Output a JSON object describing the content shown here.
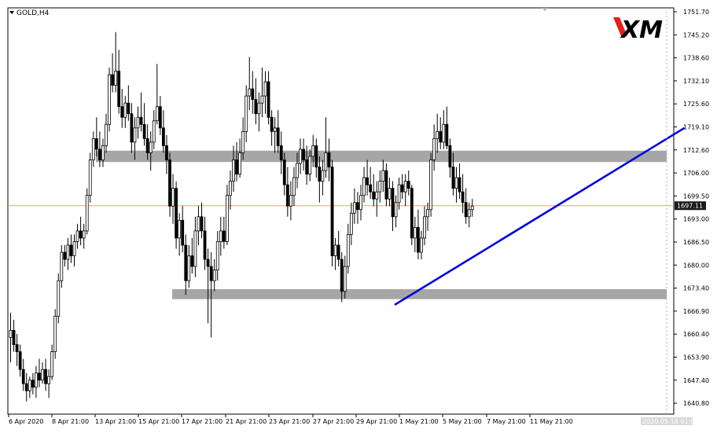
{
  "symbol_label": "GOLD,H4",
  "logo_text": "XM",
  "current_price_label": "1697.11",
  "price_ticks": [
    "1751.70",
    "1745.20",
    "1738.60",
    "1732.10",
    "1725.60",
    "1719.10",
    "1712.60",
    "1706.00",
    "1699.50",
    "1693.00",
    "1686.50",
    "1680.00",
    "1673.40",
    "1666.90",
    "1660.40",
    "1653.90",
    "1647.40",
    "1640.80"
  ],
  "date_ticks": [
    "6 Apr 2020",
    "8 Apr 21:00",
    "13 Apr 21:00",
    "15 Apr 21:00",
    "17 Apr 21:00",
    "21 Apr 21:00",
    "23 Apr 21:00",
    "27 Apr 21:00",
    "29 Apr 21:00",
    "1 May 21:00",
    "5 May 21:00",
    "7 May 21:00",
    "11 May 21:00"
  ],
  "last_date_label": "2020.05.18 01:00",
  "colors": {
    "candle": "#000000",
    "zone": "#a6a6a6",
    "trendline": "#0000e0",
    "price_line": "#f0a070",
    "price_label_bg": "#1a1a1a",
    "logo_red": "#e2231a"
  },
  "chart_data": {
    "type": "candlestick",
    "symbol": "GOLD",
    "timeframe": "H4",
    "ylim": [
      1638.5,
      1753.0
    ],
    "current_price": 1697.11,
    "zones": [
      {
        "from": 1709.4,
        "to": 1712.6
      },
      {
        "from": 1670.8,
        "to": 1673.6
      }
    ],
    "trendline": [
      {
        "bar": 121,
        "price": 1669.2
      },
      {
        "bar": 212,
        "price": 1719.0
      }
    ],
    "ohlc": [
      [
        1660,
        1667,
        1653,
        1662
      ],
      [
        1662,
        1665,
        1656,
        1658
      ],
      [
        1658,
        1661,
        1652,
        1656
      ],
      [
        1656,
        1658,
        1649,
        1651
      ],
      [
        1651,
        1654,
        1645,
        1647
      ],
      [
        1647,
        1650,
        1642,
        1645
      ],
      [
        1645,
        1649,
        1643,
        1648
      ],
      [
        1648,
        1650,
        1644,
        1646
      ],
      [
        1646,
        1652,
        1643,
        1650
      ],
      [
        1650,
        1654,
        1646,
        1648
      ],
      [
        1648,
        1653,
        1647,
        1651
      ],
      [
        1651,
        1654,
        1645,
        1647
      ],
      [
        1647,
        1651,
        1643,
        1649
      ],
      [
        1649,
        1658,
        1648,
        1656
      ],
      [
        1656,
        1668,
        1654,
        1666
      ],
      [
        1666,
        1678,
        1664,
        1676
      ],
      [
        1676,
        1686,
        1674,
        1684
      ],
      [
        1684,
        1686,
        1680,
        1682
      ],
      [
        1682,
        1688,
        1679,
        1686
      ],
      [
        1686,
        1689,
        1681,
        1683
      ],
      [
        1683,
        1689,
        1680,
        1687
      ],
      [
        1687,
        1692,
        1685,
        1690
      ],
      [
        1690,
        1694,
        1686,
        1688
      ],
      [
        1688,
        1692,
        1685,
        1690
      ],
      [
        1690,
        1702,
        1689,
        1700
      ],
      [
        1700,
        1712,
        1698,
        1710
      ],
      [
        1710,
        1718,
        1708,
        1716
      ],
      [
        1716,
        1722,
        1711,
        1713
      ],
      [
        1713,
        1718,
        1708,
        1710
      ],
      [
        1710,
        1716,
        1708,
        1714
      ],
      [
        1714,
        1723,
        1712,
        1720
      ],
      [
        1720,
        1736,
        1718,
        1734
      ],
      [
        1734,
        1740,
        1729,
        1731
      ],
      [
        1731,
        1746,
        1729,
        1735
      ],
      [
        1735,
        1741,
        1723,
        1725
      ],
      [
        1725,
        1730,
        1719,
        1722
      ],
      [
        1722,
        1728,
        1719,
        1726
      ],
      [
        1726,
        1731,
        1721,
        1723
      ],
      [
        1723,
        1726,
        1712,
        1715
      ],
      [
        1715,
        1722,
        1710,
        1719
      ],
      [
        1719,
        1725,
        1716,
        1722
      ],
      [
        1722,
        1729,
        1718,
        1720
      ],
      [
        1720,
        1726,
        1714,
        1716
      ],
      [
        1716,
        1720,
        1710,
        1712
      ],
      [
        1712,
        1718,
        1707,
        1715
      ],
      [
        1715,
        1724,
        1713,
        1721
      ],
      [
        1721,
        1737,
        1720,
        1725
      ],
      [
        1725,
        1728,
        1717,
        1719
      ],
      [
        1719,
        1724,
        1712,
        1714
      ],
      [
        1714,
        1717,
        1706,
        1710
      ],
      [
        1710,
        1712,
        1694,
        1697
      ],
      [
        1697,
        1706,
        1692,
        1702
      ],
      [
        1702,
        1704,
        1685,
        1688
      ],
      [
        1688,
        1695,
        1683,
        1693
      ],
      [
        1693,
        1697,
        1684,
        1686
      ],
      [
        1686,
        1689,
        1672,
        1676
      ],
      [
        1676,
        1686,
        1674,
        1683
      ],
      [
        1683,
        1688,
        1678,
        1680
      ],
      [
        1680,
        1694,
        1677,
        1690
      ],
      [
        1690,
        1697,
        1686,
        1694
      ],
      [
        1694,
        1698,
        1688,
        1690
      ],
      [
        1690,
        1694,
        1679,
        1682
      ],
      [
        1682,
        1685,
        1664,
        1680
      ],
      [
        1680,
        1684,
        1660,
        1676
      ],
      [
        1676,
        1682,
        1673,
        1679
      ],
      [
        1679,
        1690,
        1676,
        1687
      ],
      [
        1687,
        1694,
        1683,
        1690
      ],
      [
        1690,
        1694,
        1685,
        1687
      ],
      [
        1687,
        1703,
        1686,
        1700
      ],
      [
        1700,
        1707,
        1696,
        1704
      ],
      [
        1704,
        1714,
        1701,
        1710
      ],
      [
        1710,
        1715,
        1704,
        1706
      ],
      [
        1706,
        1716,
        1705,
        1712
      ],
      [
        1712,
        1722,
        1710,
        1718
      ],
      [
        1718,
        1731,
        1715,
        1728
      ],
      [
        1728,
        1739,
        1724,
        1730
      ],
      [
        1730,
        1735,
        1723,
        1727
      ],
      [
        1727,
        1733,
        1720,
        1723
      ],
      [
        1723,
        1729,
        1718,
        1726
      ],
      [
        1726,
        1736,
        1722,
        1728
      ],
      [
        1728,
        1735,
        1723,
        1732
      ],
      [
        1732,
        1735,
        1720,
        1722
      ],
      [
        1722,
        1724,
        1714,
        1718
      ],
      [
        1718,
        1722,
        1712,
        1719
      ],
      [
        1719,
        1724,
        1712,
        1714
      ],
      [
        1714,
        1718,
        1706,
        1710
      ],
      [
        1710,
        1712,
        1700,
        1703
      ],
      [
        1703,
        1708,
        1694,
        1697
      ],
      [
        1697,
        1704,
        1693,
        1700
      ],
      [
        1700,
        1708,
        1697,
        1705
      ],
      [
        1705,
        1712,
        1702,
        1709
      ],
      [
        1709,
        1716,
        1706,
        1713
      ],
      [
        1713,
        1716,
        1707,
        1710
      ],
      [
        1710,
        1714,
        1703,
        1706
      ],
      [
        1706,
        1713,
        1704,
        1711
      ],
      [
        1711,
        1717,
        1708,
        1714
      ],
      [
        1714,
        1716,
        1705,
        1708
      ],
      [
        1708,
        1711,
        1698,
        1704
      ],
      [
        1704,
        1710,
        1700,
        1707
      ],
      [
        1707,
        1722,
        1705,
        1712
      ],
      [
        1712,
        1716,
        1704,
        1708
      ],
      [
        1708,
        1710,
        1680,
        1683
      ],
      [
        1683,
        1688,
        1679,
        1686
      ],
      [
        1686,
        1690,
        1680,
        1682
      ],
      [
        1682,
        1684,
        1670,
        1673
      ],
      [
        1673,
        1683,
        1671,
        1680
      ],
      [
        1680,
        1692,
        1678,
        1689
      ],
      [
        1689,
        1698,
        1686,
        1695
      ],
      [
        1695,
        1702,
        1692,
        1698
      ],
      [
        1698,
        1701,
        1692,
        1696
      ],
      [
        1696,
        1703,
        1693,
        1700
      ],
      [
        1700,
        1708,
        1698,
        1705
      ],
      [
        1705,
        1710,
        1700,
        1703
      ],
      [
        1703,
        1708,
        1699,
        1701
      ],
      [
        1701,
        1706,
        1697,
        1699
      ],
      [
        1699,
        1704,
        1694,
        1701
      ],
      [
        1701,
        1707,
        1698,
        1704
      ],
      [
        1704,
        1710,
        1701,
        1707
      ],
      [
        1707,
        1709,
        1697,
        1699
      ],
      [
        1699,
        1705,
        1697,
        1702
      ],
      [
        1702,
        1704,
        1690,
        1694
      ],
      [
        1694,
        1700,
        1691,
        1698
      ],
      [
        1698,
        1705,
        1696,
        1703
      ],
      [
        1703,
        1706,
        1699,
        1701
      ],
      [
        1701,
        1706,
        1697,
        1704
      ],
      [
        1704,
        1707,
        1700,
        1702
      ],
      [
        1702,
        1703,
        1686,
        1688
      ],
      [
        1688,
        1694,
        1684,
        1691
      ],
      [
        1691,
        1696,
        1682,
        1684
      ],
      [
        1684,
        1690,
        1682,
        1688
      ],
      [
        1688,
        1697,
        1686,
        1694
      ],
      [
        1694,
        1698,
        1690,
        1696
      ],
      [
        1696,
        1712,
        1694,
        1710
      ],
      [
        1710,
        1720,
        1707,
        1716
      ],
      [
        1716,
        1723,
        1712,
        1718
      ],
      [
        1718,
        1722,
        1713,
        1715
      ],
      [
        1715,
        1724,
        1713,
        1720
      ],
      [
        1720,
        1725,
        1713,
        1714
      ],
      [
        1714,
        1716,
        1705,
        1708
      ],
      [
        1708,
        1712,
        1700,
        1702
      ],
      [
        1702,
        1708,
        1698,
        1705
      ],
      [
        1705,
        1709,
        1699,
        1701
      ],
      [
        1701,
        1706,
        1695,
        1698
      ],
      [
        1698,
        1702,
        1692,
        1694
      ],
      [
        1694,
        1698,
        1691,
        1696
      ],
      [
        1696,
        1699,
        1694,
        1697
      ]
    ]
  }
}
